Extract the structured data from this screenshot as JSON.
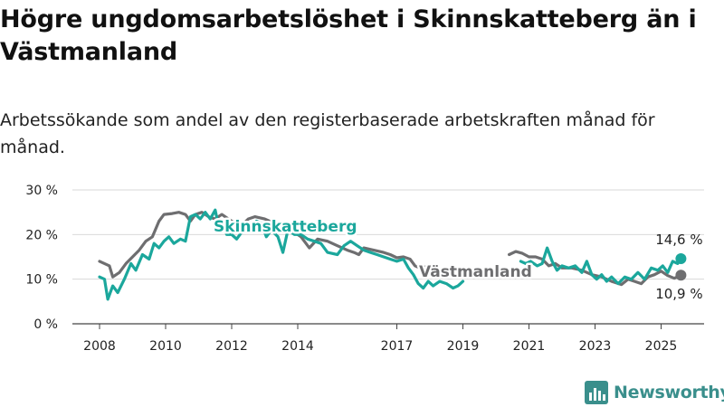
{
  "title": "Högre ungdomsarbetslöshet i Skinnskatteberg än i Västmanland",
  "subtitle": "Arbetssökande som andel av den registerbaserade arbetskraften månad för månad.",
  "brand": {
    "name": "Newsworthy",
    "icon": "bar-chart-logo-icon",
    "color": "#3a8f8c"
  },
  "chart_data": {
    "type": "line",
    "xlim": [
      2007.5,
      2026.0
    ],
    "ylim": [
      0,
      30
    ],
    "yticks": [
      0,
      10,
      20,
      30
    ],
    "ytick_labels": [
      "0 %",
      "10 %",
      "20 %",
      "30 %"
    ],
    "xticks": [
      2008,
      2010,
      2012,
      2014,
      2017,
      2019,
      2021,
      2023,
      2025
    ],
    "xtick_labels": [
      "2008",
      "2010",
      "2012",
      "2014",
      "2017",
      "2019",
      "2021",
      "2023",
      "2025"
    ],
    "grid": "horizontal",
    "series": [
      {
        "name": "Västmanland",
        "color": "#6e6e70",
        "end_value_label": "10,9 %",
        "segments": [
          [
            [
              2008.0,
              14.0
            ],
            [
              2008.3,
              13.0
            ],
            [
              2008.4,
              10.5
            ],
            [
              2008.6,
              11.5
            ],
            [
              2008.8,
              13.5
            ],
            [
              2009.0,
              15.0
            ],
            [
              2009.2,
              16.5
            ],
            [
              2009.4,
              18.5
            ],
            [
              2009.6,
              19.5
            ],
            [
              2009.8,
              23.0
            ],
            [
              2009.95,
              24.5
            ],
            [
              2010.2,
              24.7
            ],
            [
              2010.4,
              25.0
            ],
            [
              2010.6,
              24.5
            ],
            [
              2010.75,
              23.0
            ],
            [
              2010.9,
              24.5
            ],
            [
              2011.1,
              25.0
            ],
            [
              2011.3,
              24.0
            ],
            [
              2011.5,
              23.5
            ],
            [
              2011.7,
              24.5
            ],
            [
              2011.9,
              23.5
            ],
            [
              2012.1,
              22.5
            ],
            [
              2012.3,
              22.0
            ],
            [
              2012.5,
              23.5
            ],
            [
              2012.7,
              24.0
            ],
            [
              2013.0,
              23.5
            ],
            [
              2013.3,
              22.5
            ],
            [
              2013.6,
              21.5
            ],
            [
              2013.9,
              20.5
            ],
            [
              2014.1,
              19.5
            ],
            [
              2014.35,
              17.0
            ],
            [
              2014.6,
              19.0
            ],
            [
              2014.9,
              18.5
            ],
            [
              2015.2,
              17.5
            ],
            [
              2015.5,
              16.5
            ],
            [
              2015.7,
              16.0
            ],
            [
              2015.85,
              15.5
            ],
            [
              2016.0,
              17.0
            ],
            [
              2016.3,
              16.5
            ],
            [
              2016.6,
              16.0
            ],
            [
              2016.8,
              15.5
            ],
            [
              2017.0,
              14.8
            ],
            [
              2017.2,
              15.0
            ],
            [
              2017.4,
              14.5
            ],
            [
              2017.55,
              13.0
            ],
            [
              2017.7,
              12.5
            ],
            [
              2017.9,
              12.8
            ],
            [
              2018.1,
              12.5
            ],
            [
              2018.2,
              13.0
            ]
          ],
          [
            [
              2020.4,
              15.5
            ],
            [
              2020.6,
              16.2
            ],
            [
              2020.8,
              15.8
            ],
            [
              2021.0,
              15.0
            ],
            [
              2021.2,
              15.0
            ],
            [
              2021.4,
              14.5
            ],
            [
              2021.6,
              13.0
            ],
            [
              2021.8,
              13.5
            ],
            [
              2022.0,
              12.5
            ],
            [
              2022.3,
              12.5
            ],
            [
              2022.6,
              12.0
            ],
            [
              2022.9,
              11.0
            ],
            [
              2023.2,
              10.5
            ],
            [
              2023.5,
              9.5
            ],
            [
              2023.8,
              8.8
            ],
            [
              2024.0,
              10.0
            ],
            [
              2024.2,
              9.5
            ],
            [
              2024.4,
              9.0
            ],
            [
              2024.6,
              10.5
            ],
            [
              2024.8,
              11.0
            ],
            [
              2025.0,
              11.8
            ],
            [
              2025.2,
              10.8
            ],
            [
              2025.4,
              10.2
            ],
            [
              2025.6,
              10.9
            ]
          ]
        ]
      },
      {
        "name": "Skinnskatteberg",
        "color": "#1ba79c",
        "end_value_label": "14,6 %",
        "segments": [
          [
            [
              2008.0,
              10.5
            ],
            [
              2008.15,
              10.0
            ],
            [
              2008.25,
              5.5
            ],
            [
              2008.4,
              8.5
            ],
            [
              2008.55,
              7.0
            ],
            [
              2008.75,
              10.0
            ],
            [
              2008.95,
              13.5
            ],
            [
              2009.1,
              12.0
            ],
            [
              2009.3,
              15.5
            ],
            [
              2009.5,
              14.5
            ],
            [
              2009.65,
              18.0
            ],
            [
              2009.8,
              17.0
            ],
            [
              2009.95,
              18.5
            ],
            [
              2010.1,
              19.5
            ],
            [
              2010.25,
              18.0
            ],
            [
              2010.45,
              19.0
            ],
            [
              2010.6,
              18.5
            ],
            [
              2010.75,
              24.0
            ],
            [
              2010.9,
              24.5
            ],
            [
              2011.05,
              23.5
            ],
            [
              2011.2,
              25.0
            ],
            [
              2011.35,
              23.5
            ],
            [
              2011.5,
              25.5
            ],
            [
              2011.6,
              22.0
            ],
            [
              2011.75,
              22.5
            ],
            [
              2011.85,
              20.0
            ],
            [
              2012.0,
              20.0
            ],
            [
              2012.15,
              19.0
            ],
            [
              2012.3,
              20.5
            ],
            [
              2012.45,
              22.0
            ],
            [
              2012.6,
              21.5
            ],
            [
              2012.75,
              23.0
            ],
            [
              2012.9,
              22.5
            ],
            [
              2013.05,
              19.5
            ],
            [
              2013.2,
              21.0
            ],
            [
              2013.4,
              19.5
            ],
            [
              2013.55,
              16.0
            ],
            [
              2013.7,
              21.0
            ],
            [
              2013.9,
              20.0
            ],
            [
              2014.1,
              20.0
            ],
            [
              2014.3,
              19.0
            ],
            [
              2014.5,
              18.5
            ],
            [
              2014.7,
              18.0
            ],
            [
              2014.9,
              16.0
            ],
            [
              2015.2,
              15.5
            ],
            [
              2015.4,
              17.5
            ],
            [
              2015.6,
              18.5
            ],
            [
              2015.8,
              17.5
            ],
            [
              2016.0,
              16.5
            ],
            [
              2016.2,
              16.0
            ],
            [
              2016.4,
              15.5
            ],
            [
              2016.6,
              15.0
            ],
            [
              2016.8,
              14.5
            ],
            [
              2017.0,
              14.0
            ],
            [
              2017.2,
              14.5
            ],
            [
              2017.35,
              12.5
            ],
            [
              2017.5,
              11.0
            ],
            [
              2017.65,
              9.0
            ],
            [
              2017.8,
              8.0
            ],
            [
              2017.95,
              9.5
            ],
            [
              2018.1,
              8.5
            ],
            [
              2018.3,
              9.5
            ],
            [
              2018.5,
              9.0
            ],
            [
              2018.7,
              8.0
            ],
            [
              2018.85,
              8.5
            ],
            [
              2019.0,
              9.5
            ]
          ],
          [
            [
              2020.75,
              14.0
            ],
            [
              2020.9,
              13.5
            ],
            [
              2021.05,
              14.0
            ],
            [
              2021.25,
              13.0
            ],
            [
              2021.4,
              13.5
            ],
            [
              2021.55,
              17.0
            ],
            [
              2021.7,
              14.0
            ],
            [
              2021.85,
              12.0
            ],
            [
              2022.0,
              13.0
            ],
            [
              2022.2,
              12.5
            ],
            [
              2022.4,
              13.0
            ],
            [
              2022.6,
              11.5
            ],
            [
              2022.75,
              14.0
            ],
            [
              2022.9,
              11.0
            ],
            [
              2023.05,
              10.0
            ],
            [
              2023.2,
              11.0
            ],
            [
              2023.35,
              9.5
            ],
            [
              2023.5,
              10.5
            ],
            [
              2023.7,
              9.0
            ],
            [
              2023.9,
              10.5
            ],
            [
              2024.1,
              10.0
            ],
            [
              2024.3,
              11.5
            ],
            [
              2024.5,
              10.0
            ],
            [
              2024.7,
              12.5
            ],
            [
              2024.9,
              12.0
            ],
            [
              2025.05,
              13.0
            ],
            [
              2025.2,
              11.5
            ],
            [
              2025.35,
              14.0
            ],
            [
              2025.5,
              13.5
            ],
            [
              2025.6,
              14.6
            ]
          ]
        ]
      }
    ]
  }
}
